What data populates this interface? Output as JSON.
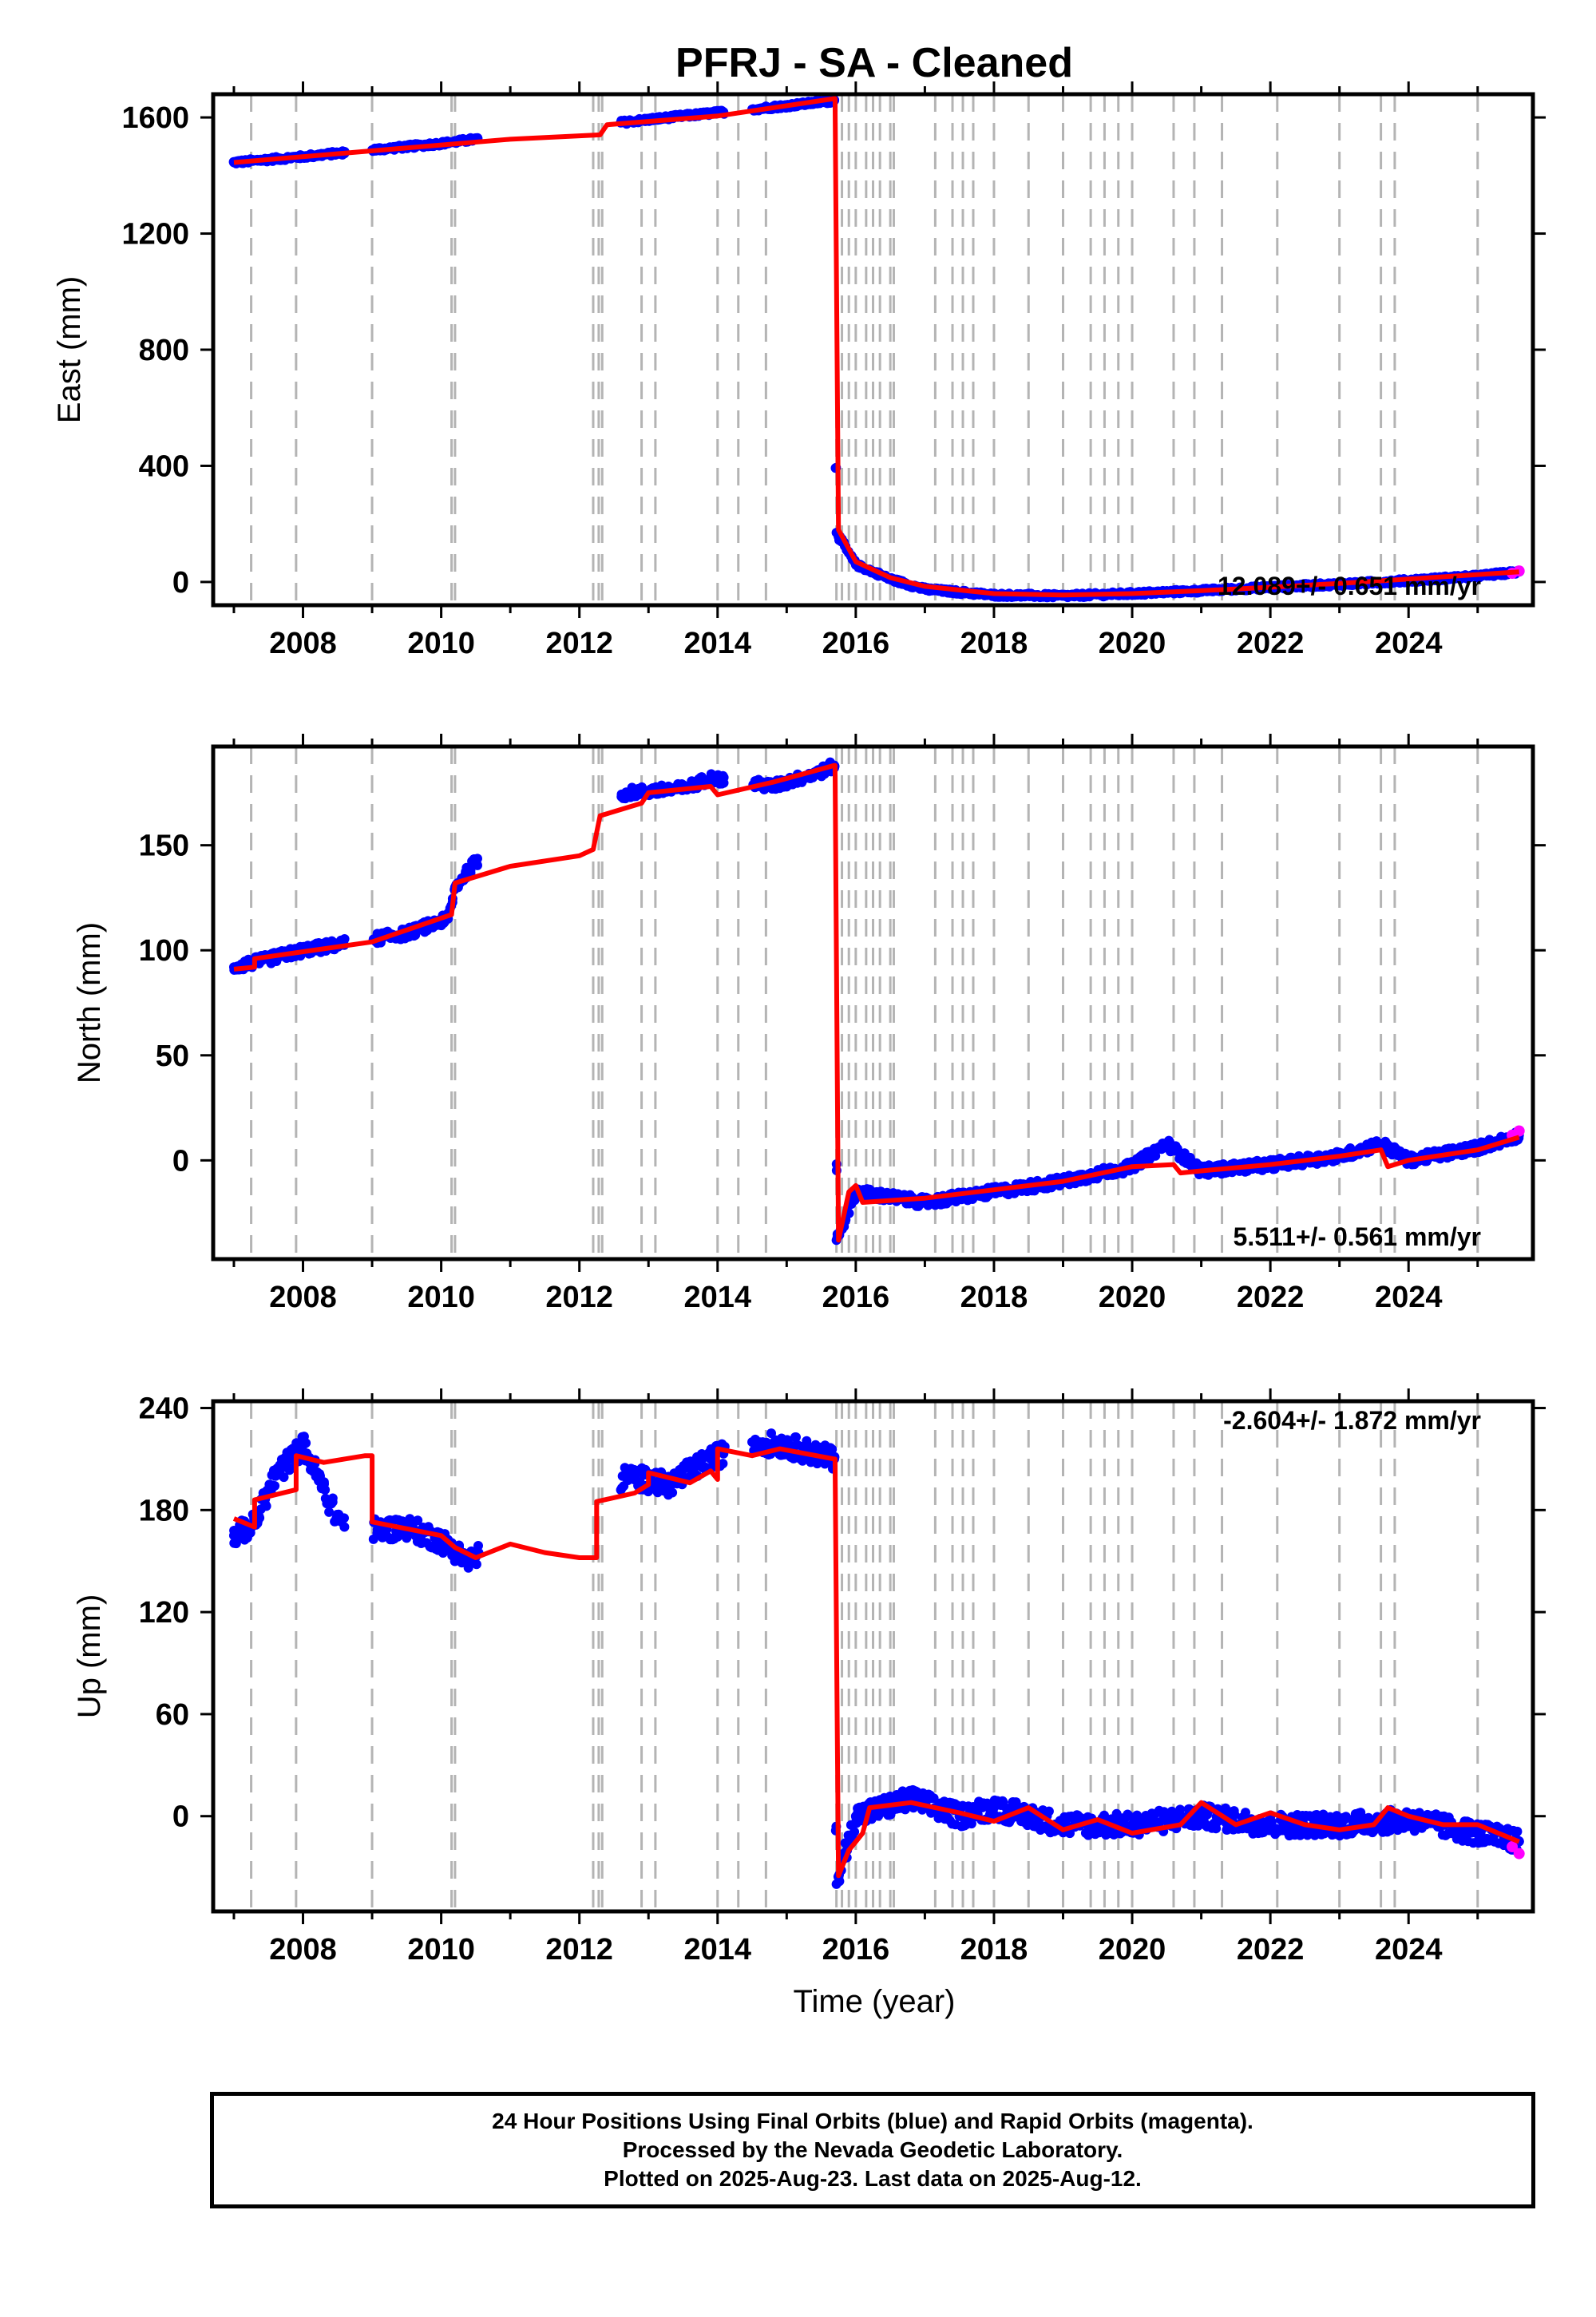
{
  "figure": {
    "title": "PFRJ  - SA - Cleaned",
    "xlabel": "Time (year)",
    "footer": {
      "line1": "24 Hour Positions Using Final Orbits (blue) and Rapid Orbits (magenta).",
      "line2": "Processed by the Nevada Geodetic Laboratory.",
      "line3": "Plotted on 2025-Aug-23. Last data on 2025-Aug-12."
    },
    "colors": {
      "final_orbits": "#0000ff",
      "rapid_orbits": "#ff00ff",
      "model": "#ff0000",
      "event_lines": "#b4b4b4"
    }
  },
  "chart_data": [
    {
      "type": "scatter",
      "panel": "east",
      "ylabel": "East (mm)",
      "rate_label": "12.089+/- 0.651 mm/yr",
      "xlim": [
        2006.7,
        2025.8
      ],
      "ylim": [
        -80,
        1680
      ],
      "yticks": [
        0,
        400,
        800,
        1200,
        1600
      ],
      "xticks": [
        2008,
        2010,
        2012,
        2014,
        2016,
        2018,
        2020,
        2022,
        2024
      ],
      "series": [
        {
          "name": "Final Orbits (blue)",
          "x": [
            2007.0,
            2008.0,
            2009.0,
            2010.0,
            2010.5,
            2012.7,
            2013.5,
            2014.5,
            2015.0,
            2015.69,
            2015.72,
            2016.0,
            2016.5,
            2017.0,
            2018.0,
            2019.0,
            2020.0,
            2021.0,
            2022.0,
            2023.0,
            2024.0,
            2025.0,
            2025.6
          ],
          "y": [
            1445,
            1465,
            1488,
            1510,
            1525,
            1585,
            1605,
            1628,
            1640,
            1658,
            170,
            60,
            10,
            -25,
            -45,
            -48,
            -40,
            -30,
            -18,
            -8,
            5,
            20,
            35
          ]
        },
        {
          "name": "Rapid Orbits (magenta)",
          "x": [
            2025.5,
            2025.6
          ],
          "y": [
            30,
            38
          ]
        }
      ],
      "model": {
        "x": [
          2007.0,
          2009.0,
          2011.0,
          2012.3,
          2012.4,
          2014.0,
          2015.69,
          2015.7,
          2015.75,
          2016.0,
          2016.5,
          2017.0,
          2018.0,
          2019.0,
          2020.0,
          2021.0,
          2022.0,
          2023.0,
          2024.0,
          2025.6
        ],
        "y": [
          1445,
          1485,
          1525,
          1540,
          1575,
          1605,
          1665,
          1665,
          180,
          70,
          15,
          -15,
          -40,
          -45,
          -40,
          -30,
          -18,
          -5,
          10,
          35
        ]
      }
    },
    {
      "type": "scatter",
      "panel": "north",
      "ylabel": "North (mm)",
      "rate_label": "5.511+/- 0.561 mm/yr",
      "xlim": [
        2006.7,
        2025.8
      ],
      "ylim": [
        -47,
        197
      ],
      "yticks": [
        0,
        50,
        100,
        150
      ],
      "xticks": [
        2008,
        2010,
        2012,
        2014,
        2016,
        2018,
        2020,
        2022,
        2024
      ],
      "series": [
        {
          "name": "Final Orbits (blue)",
          "x": [
            2007.0,
            2007.4,
            2008.0,
            2009.5,
            2010.1,
            2010.2,
            2010.5,
            2012.7,
            2013.5,
            2013.9,
            2014.8,
            2015.5,
            2015.69,
            2015.72,
            2016.0,
            2017.0,
            2018.0,
            2019.0,
            2020.0,
            2020.5,
            2021.0,
            2022.0,
            2023.0,
            2023.6,
            2024.0,
            2025.0,
            2025.6
          ],
          "y": [
            92,
            95,
            100,
            108,
            115,
            130,
            142,
            175,
            177,
            182,
            178,
            185,
            188,
            -38,
            -15,
            -20,
            -15,
            -10,
            -3,
            8,
            -5,
            -2,
            2,
            8,
            0,
            6,
            12
          ]
        },
        {
          "name": "Rapid Orbits (magenta)",
          "x": [
            2025.5,
            2025.6
          ],
          "y": [
            12,
            14
          ]
        }
      ],
      "model": {
        "x": [
          2007.0,
          2007.3,
          2007.3,
          2009.0,
          2010.15,
          2010.2,
          2011.0,
          2012.0,
          2012.2,
          2012.3,
          2012.9,
          2013.0,
          2013.9,
          2014.0,
          2014.8,
          2015.69,
          2015.7,
          2015.75,
          2015.9,
          2016.0,
          2016.1,
          2017.0,
          2018.0,
          2019.0,
          2020.0,
          2020.6,
          2020.7,
          2021.0,
          2022.0,
          2023.0,
          2023.6,
          2023.7,
          2024.0,
          2025.0,
          2025.6
        ],
        "y": [
          91,
          92,
          96,
          104,
          117,
          132,
          140,
          145,
          148,
          164,
          170,
          175,
          178,
          174,
          180,
          188,
          188,
          -38,
          -15,
          -12,
          -20,
          -18,
          -14,
          -10,
          -3,
          -2,
          -6,
          -5,
          -2,
          2,
          5,
          -3,
          0,
          5,
          11
        ]
      }
    },
    {
      "type": "scatter",
      "panel": "up",
      "ylabel": "Up (mm)",
      "rate_label": "-2.604+/- 1.872 mm/yr",
      "xlim": [
        2006.7,
        2025.8
      ],
      "ylim": [
        -56,
        244
      ],
      "yticks": [
        0,
        60,
        120,
        180,
        240
      ],
      "xticks": [
        2008,
        2010,
        2012,
        2014,
        2016,
        2018,
        2020,
        2022,
        2024
      ],
      "series": [
        {
          "name": "Final Orbits (blue)",
          "x": [
            2007.0,
            2007.3,
            2007.6,
            2008.0,
            2008.5,
            2009.1,
            2009.5,
            2010.0,
            2010.4,
            2012.7,
            2013.3,
            2013.9,
            2014.5,
            2015.0,
            2015.69,
            2015.72,
            2016.0,
            2016.8,
            2017.5,
            2018.0,
            2019.0,
            2020.0,
            2021.0,
            2022.0,
            2023.0,
            2024.0,
            2025.0,
            2025.6
          ],
          "y": [
            165,
            172,
            200,
            218,
            175,
            168,
            170,
            162,
            150,
            200,
            195,
            210,
            220,
            218,
            210,
            -40,
            0,
            10,
            0,
            5,
            -5,
            -5,
            0,
            -5,
            -5,
            -2,
            -10,
            -15
          ]
        },
        {
          "name": "Rapid Orbits (magenta)",
          "x": [
            2025.5,
            2025.6
          ],
          "y": [
            -18,
            -22
          ]
        }
      ],
      "model": {
        "x": [
          2007.0,
          2007.3,
          2007.3,
          2007.9,
          2007.9,
          2008.3,
          2008.9,
          2009.0,
          2009.0,
          2010.0,
          2010.2,
          2010.5,
          2011.0,
          2011.5,
          2012.0,
          2012.25,
          2012.25,
          2012.8,
          2013.0,
          2013.0,
          2013.6,
          2013.9,
          2014.0,
          2014.0,
          2014.5,
          2014.9,
          2015.69,
          2015.7,
          2015.75,
          2015.9,
          2016.0,
          2016.1,
          2016.2,
          2016.8,
          2017.5,
          2018.0,
          2018.5,
          2019.0,
          2019.5,
          2020.0,
          2020.7,
          2021.0,
          2021.5,
          2022.0,
          2022.5,
          2023.0,
          2023.5,
          2023.7,
          2024.0,
          2024.5,
          2025.0,
          2025.6
        ],
        "y": [
          175,
          170,
          186,
          192,
          212,
          208,
          212,
          212,
          173,
          165,
          158,
          152,
          160,
          155,
          152,
          152,
          185,
          190,
          195,
          202,
          196,
          203,
          198,
          216,
          212,
          216,
          210,
          210,
          -35,
          -20,
          -15,
          -10,
          5,
          8,
          2,
          -3,
          5,
          -8,
          -2,
          -10,
          -5,
          8,
          -5,
          2,
          -5,
          -8,
          -5,
          5,
          0,
          -5,
          -5,
          -15
        ]
      }
    }
  ],
  "events": [
    2007.25,
    2007.9,
    2009.0,
    2010.15,
    2010.2,
    2012.2,
    2012.28,
    2012.33,
    2012.9,
    2013.1,
    2014.0,
    2014.3,
    2014.7,
    2015.72,
    2015.8,
    2015.9,
    2016.0,
    2016.15,
    2016.25,
    2016.35,
    2016.5,
    2016.55,
    2017.15,
    2017.4,
    2017.55,
    2017.7,
    2018.0,
    2018.5,
    2019.0,
    2019.4,
    2019.6,
    2019.8,
    2020.0,
    2020.6,
    2020.9,
    2021.3,
    2022.1,
    2023.0,
    2023.6,
    2023.8,
    2025.0
  ]
}
